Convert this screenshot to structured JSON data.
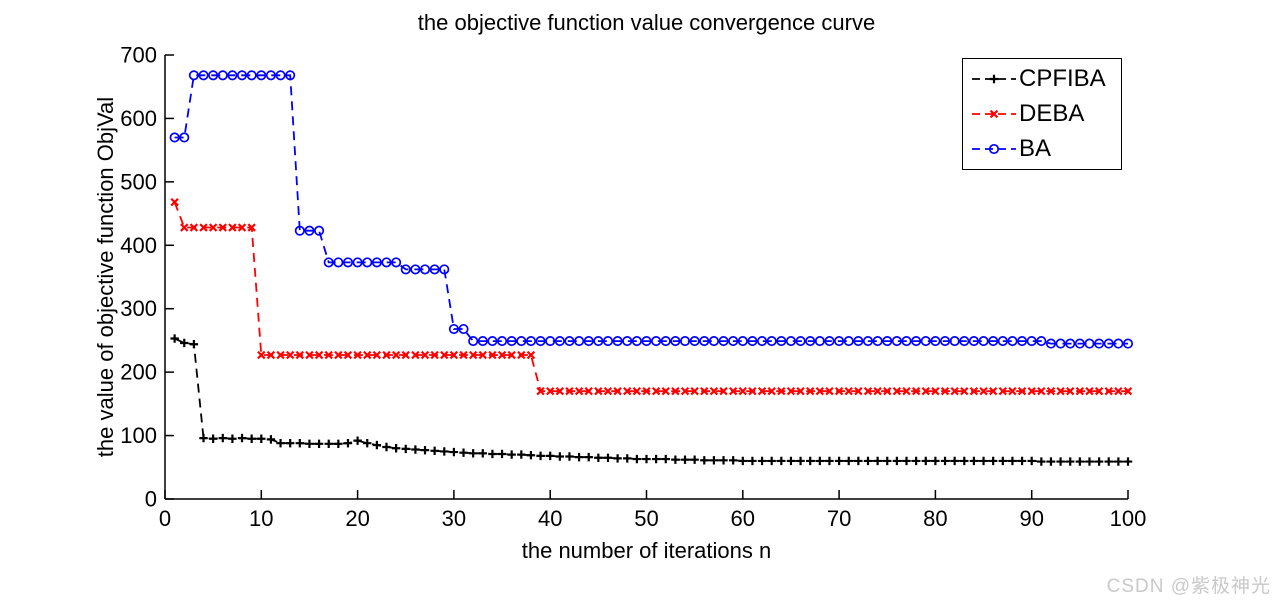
{
  "page": {
    "background": "#ffffff"
  },
  "watermark": {
    "text": "CSDN @紫极神光",
    "color": "#c9c9c9"
  },
  "chart_data": {
    "type": "line",
    "title": "the objective function value convergence curve",
    "xlabel": "the number of iterations n",
    "ylabel": "the value of objective function ObjVal",
    "xlim": [
      0,
      100
    ],
    "ylim": [
      0,
      700
    ],
    "xticks": [
      0,
      10,
      20,
      30,
      40,
      50,
      60,
      70,
      80,
      90,
      100
    ],
    "yticks": [
      0,
      100,
      200,
      300,
      400,
      500,
      600,
      700
    ],
    "grid": false,
    "legend_position": "top-right",
    "x": [
      1,
      2,
      3,
      4,
      5,
      6,
      7,
      8,
      9,
      10,
      11,
      12,
      13,
      14,
      15,
      16,
      17,
      18,
      19,
      20,
      21,
      22,
      23,
      24,
      25,
      26,
      27,
      28,
      29,
      30,
      31,
      32,
      33,
      34,
      35,
      36,
      37,
      38,
      39,
      40,
      41,
      42,
      43,
      44,
      45,
      46,
      47,
      48,
      49,
      50,
      51,
      52,
      53,
      54,
      55,
      56,
      57,
      58,
      59,
      60,
      61,
      62,
      63,
      64,
      65,
      66,
      67,
      68,
      69,
      70,
      71,
      72,
      73,
      74,
      75,
      76,
      77,
      78,
      79,
      80,
      81,
      82,
      83,
      84,
      85,
      86,
      87,
      88,
      89,
      90,
      91,
      92,
      93,
      94,
      95,
      96,
      97,
      98,
      99,
      100
    ],
    "series": [
      {
        "name": "CPFIBA",
        "color": "#000000",
        "marker": "plus",
        "linestyle": "dashed",
        "values": [
          253,
          246,
          244,
          96,
          95,
          96,
          95,
          96,
          95,
          95,
          94,
          88,
          88,
          88,
          87,
          87,
          87,
          87,
          88,
          92,
          88,
          85,
          82,
          80,
          79,
          78,
          77,
          76,
          75,
          74,
          73,
          72,
          72,
          71,
          71,
          70,
          70,
          69,
          68,
          68,
          67,
          67,
          66,
          66,
          65,
          65,
          64,
          64,
          63,
          63,
          63,
          63,
          62,
          62,
          62,
          61,
          61,
          61,
          61,
          60,
          60,
          60,
          60,
          60,
          60,
          60,
          60,
          60,
          60,
          60,
          60,
          60,
          60,
          60,
          60,
          60,
          60,
          60,
          60,
          60,
          60,
          60,
          60,
          60,
          60,
          60,
          60,
          60,
          60,
          60,
          59,
          59,
          59,
          59,
          59,
          59,
          59,
          59,
          59,
          59
        ]
      },
      {
        "name": "DEBA",
        "color": "#ff0000",
        "marker": "x",
        "linestyle": "dashed",
        "values": [
          468,
          428,
          428,
          428,
          428,
          428,
          428,
          428,
          428,
          227,
          227,
          227,
          227,
          227,
          227,
          227,
          227,
          227,
          227,
          227,
          227,
          227,
          227,
          227,
          227,
          227,
          227,
          227,
          227,
          227,
          227,
          227,
          227,
          227,
          227,
          227,
          227,
          227,
          170,
          170,
          170,
          170,
          170,
          170,
          170,
          170,
          170,
          170,
          170,
          170,
          170,
          170,
          170,
          170,
          170,
          170,
          170,
          170,
          170,
          170,
          170,
          170,
          170,
          170,
          170,
          170,
          170,
          170,
          170,
          170,
          170,
          170,
          170,
          170,
          170,
          170,
          170,
          170,
          170,
          170,
          170,
          170,
          170,
          170,
          170,
          170,
          170,
          170,
          170,
          170,
          170,
          170,
          170,
          170,
          170,
          170,
          170,
          170,
          170,
          170
        ]
      },
      {
        "name": "BA",
        "color": "#0000ff",
        "marker": "circle",
        "linestyle": "dashed",
        "values": [
          570,
          570,
          668,
          668,
          668,
          668,
          668,
          668,
          668,
          668,
          668,
          668,
          668,
          423,
          423,
          423,
          373,
          373,
          373,
          373,
          373,
          373,
          373,
          373,
          362,
          362,
          362,
          362,
          362,
          268,
          268,
          249,
          249,
          249,
          249,
          249,
          249,
          249,
          249,
          249,
          249,
          249,
          249,
          249,
          249,
          249,
          249,
          249,
          249,
          249,
          249,
          249,
          249,
          249,
          249,
          249,
          249,
          249,
          249,
          249,
          249,
          249,
          249,
          249,
          249,
          249,
          249,
          249,
          249,
          249,
          249,
          249,
          249,
          249,
          249,
          249,
          249,
          249,
          249,
          249,
          249,
          249,
          249,
          249,
          249,
          249,
          249,
          249,
          249,
          249,
          249,
          245,
          245,
          245,
          245,
          245,
          245,
          245,
          245,
          245
        ]
      }
    ]
  }
}
